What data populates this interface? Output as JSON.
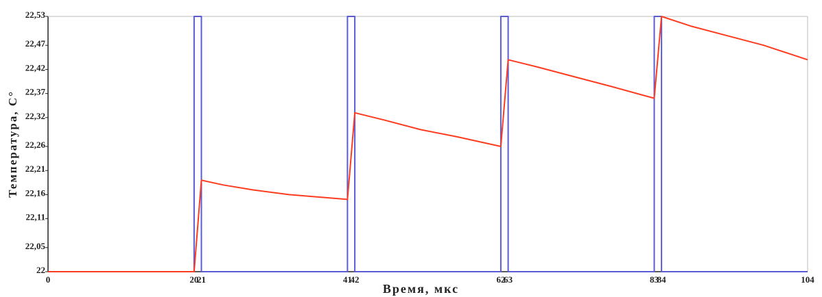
{
  "chart_data": {
    "type": "line",
    "title": "",
    "xlabel": "Время, мкс",
    "ylabel": "Температура, С°",
    "xlim": [
      0,
      104
    ],
    "ylim": [
      22,
      22.53
    ],
    "grid": false,
    "x_ticks": [
      {
        "value": 0,
        "label": "0"
      },
      {
        "value": 20,
        "label": "20"
      },
      {
        "value": 21,
        "label": "21"
      },
      {
        "value": 41,
        "label": "41"
      },
      {
        "value": 42,
        "label": "42"
      },
      {
        "value": 62,
        "label": "62"
      },
      {
        "value": 63,
        "label": "63"
      },
      {
        "value": 83,
        "label": "83"
      },
      {
        "value": 84,
        "label": "84"
      },
      {
        "value": 104,
        "label": "104"
      }
    ],
    "y_ticks": [
      {
        "value": 22,
        "label": "22"
      },
      {
        "value": 22.05,
        "label": "22,05"
      },
      {
        "value": 22.11,
        "label": "22,11"
      },
      {
        "value": 22.16,
        "label": "22,16"
      },
      {
        "value": 22.21,
        "label": "22,21"
      },
      {
        "value": 22.26,
        "label": "22,26"
      },
      {
        "value": 22.32,
        "label": "22,32"
      },
      {
        "value": 22.37,
        "label": "22,37"
      },
      {
        "value": 22.42,
        "label": "22,42"
      },
      {
        "value": 22.47,
        "label": "22,47"
      },
      {
        "value": 22.53,
        "label": "22,53"
      }
    ],
    "series": [
      {
        "color": "#5b5bd6",
        "x": [
          0,
          20.0,
          20.0,
          21.0,
          21.0,
          41.0,
          41.0,
          42.0,
          42.0,
          62.0,
          62.0,
          63.0,
          63.0,
          83.0,
          83.0,
          84.0,
          84.0,
          104
        ],
        "y": [
          22,
          22,
          22.53,
          22.53,
          22,
          22,
          22.53,
          22.53,
          22,
          22,
          22.53,
          22.53,
          22,
          22,
          22.53,
          22.53,
          22,
          22
        ]
      },
      {
        "color": "#ff3b1f",
        "x": [
          0,
          20,
          21,
          24,
          28,
          33,
          37,
          41,
          42,
          46,
          51,
          56,
          62,
          63,
          67,
          72,
          77,
          83,
          84,
          88,
          93,
          98,
          104
        ],
        "y": [
          22.0,
          22.0,
          22.19,
          22.18,
          22.17,
          22.16,
          22.155,
          22.15,
          22.33,
          22.315,
          22.295,
          22.28,
          22.26,
          22.44,
          22.425,
          22.405,
          22.385,
          22.36,
          22.53,
          22.51,
          22.49,
          22.47,
          22.44
        ]
      }
    ]
  }
}
